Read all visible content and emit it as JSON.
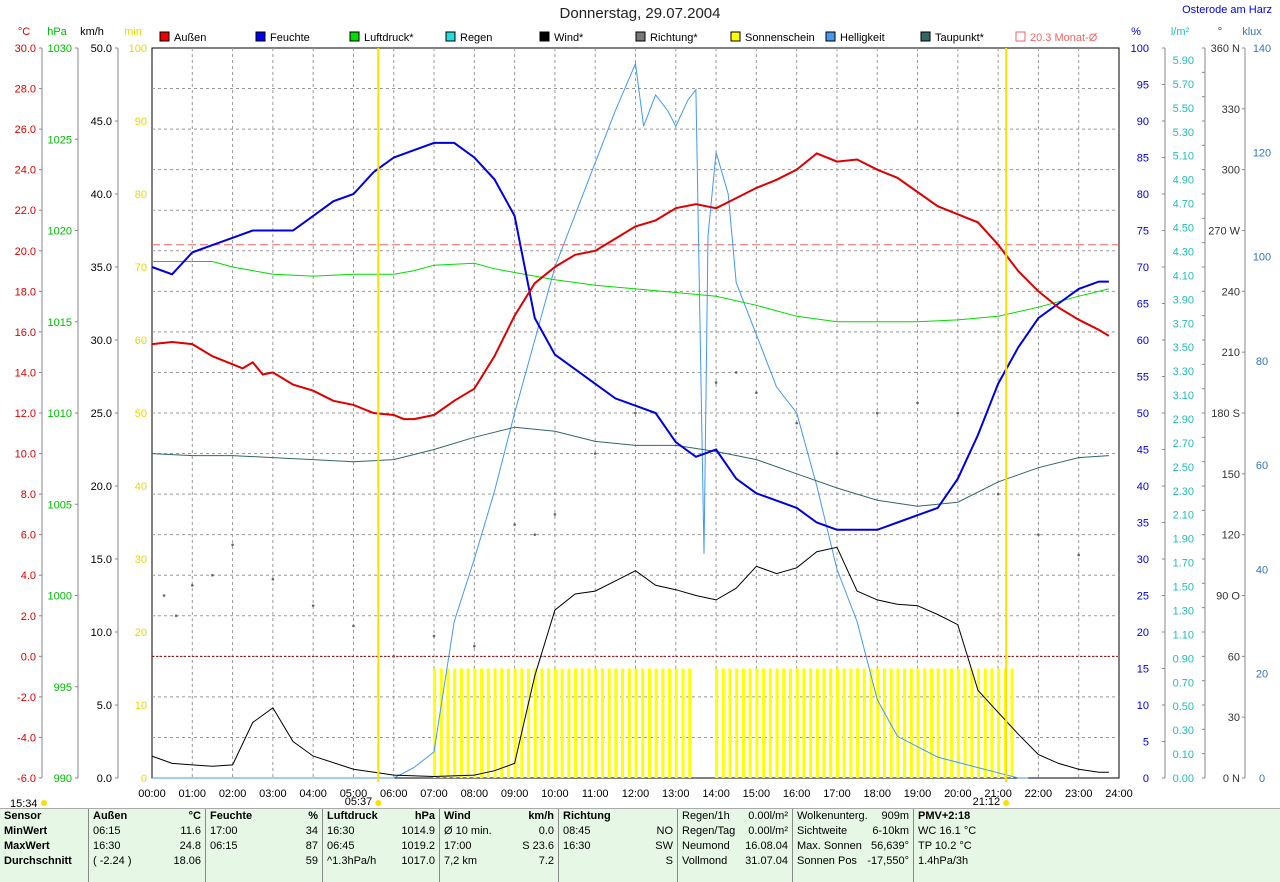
{
  "page": {
    "title": "Donnerstag, 29.07.2004",
    "station": "Osterode am Harz"
  },
  "colors": {
    "temp": "#dd0000",
    "hum": "#0000dd",
    "press": "#00dd00",
    "wind": "#000000",
    "dir": "#666666",
    "sun": "#ffff00",
    "light": "#4499ee",
    "dew": "#336666",
    "avg": "#ee6666",
    "grid": "#999999"
  },
  "legend": [
    {
      "label": "Außen",
      "color": "#ee0000"
    },
    {
      "label": "Feuchte",
      "color": "#0000ee"
    },
    {
      "label": "Luftdruck*",
      "color": "#00dd00"
    },
    {
      "label": "Regen",
      "color": "#22dddd"
    },
    {
      "label": "Wind*",
      "color": "#000000"
    },
    {
      "label": "Richtung*",
      "color": "#777777"
    },
    {
      "label": "Sonnenschein",
      "color": "#ffff00"
    },
    {
      "label": "Helligkeit",
      "color": "#4499ee"
    },
    {
      "label": "Taupunkt*",
      "color": "#336666"
    },
    {
      "label": "20.3 Monat-Ø",
      "color": "#ee6666"
    }
  ],
  "axes": {
    "left_units": [
      "°C",
      "hPa",
      "km/h",
      "min"
    ],
    "right_units": [
      "%",
      "l/m²",
      "°",
      "klux"
    ],
    "temp_ticks": [
      "30.0",
      "28.0",
      "26.0",
      "24.0",
      "22.0",
      "20.0",
      "18.0",
      "16.0",
      "14.0",
      "12.0",
      "10.0",
      "8.0",
      "6.0",
      "4.0",
      "2.0",
      "0.0",
      "-2.0",
      "-4.0",
      "-6.0"
    ],
    "press_ticks": [
      "1030",
      "1025",
      "1020",
      "1015",
      "1010",
      "1005",
      "1000",
      "995",
      "990"
    ],
    "wind_ticks": [
      "50.0",
      "45.0",
      "40.0",
      "35.0",
      "30.0",
      "25.0",
      "20.0",
      "15.0",
      "10.0",
      "5.0",
      "0.0"
    ],
    "min_ticks": [
      "100",
      "90",
      "80",
      "70",
      "60",
      "50",
      "40",
      "30",
      "20",
      "10",
      "0"
    ],
    "hum_ticks": [
      "100",
      "95",
      "90",
      "85",
      "80",
      "75",
      "70",
      "65",
      "60",
      "55",
      "50",
      "45",
      "40",
      "35",
      "30",
      "25",
      "20",
      "15",
      "10",
      "5",
      "0"
    ],
    "rain_ticks": [
      "5.90",
      "5.70",
      "5.50",
      "5.30",
      "5.10",
      "4.90",
      "4.70",
      "4.50",
      "4.30",
      "4.10",
      "3.90",
      "3.70",
      "3.50",
      "3.30",
      "3.10",
      "2.90",
      "2.70",
      "2.50",
      "2.30",
      "2.10",
      "1.90",
      "1.70",
      "1.50",
      "1.30",
      "1.10",
      "0.90",
      "0.70",
      "0.50",
      "0.30",
      "0.10",
      "0.00"
    ],
    "dir_ticks": [
      "360 N",
      "330",
      "300",
      "270 W",
      "240",
      "210",
      "180 S",
      "150",
      "120",
      "90 O",
      "60",
      "30",
      "0 N"
    ],
    "lux_ticks": [
      "140",
      "120",
      "100",
      "80",
      "60",
      "40",
      "20",
      "0"
    ],
    "x_ticks": [
      "00:00",
      "01:00",
      "02:00",
      "03:00",
      "04:00",
      "05:00",
      "06:00",
      "07:00",
      "08:00",
      "09:00",
      "10:00",
      "11:00",
      "12:00",
      "13:00",
      "14:00",
      "15:00",
      "16:00",
      "17:00",
      "18:00",
      "19:00",
      "20:00",
      "21:00",
      "22:00",
      "23:00",
      "24:00"
    ],
    "markers": {
      "sunrise": "05:37",
      "sunset": "21:12",
      "now": "15:34"
    }
  },
  "chart_data": {
    "type": "line",
    "title": "Donnerstag, 29.07.2004",
    "x_range": [
      "00:00",
      "24:00"
    ],
    "series": [
      {
        "name": "Außen",
        "unit": "°C",
        "ylim": [
          -6,
          30
        ],
        "x": [
          0,
          0.5,
          1,
          1.5,
          2,
          2.25,
          2.5,
          2.75,
          3,
          3.5,
          4,
          4.5,
          5,
          5.5,
          6,
          6.25,
          6.5,
          7,
          7.5,
          8,
          8.5,
          9,
          9.5,
          10,
          10.5,
          11,
          11.5,
          12,
          12.5,
          13,
          13.5,
          14,
          14.5,
          15,
          15.5,
          16,
          16.5,
          17,
          17.5,
          18,
          18.5,
          19,
          19.5,
          20,
          20.5,
          21,
          21.5,
          22,
          22.5,
          23,
          23.5,
          23.75
        ],
        "values": [
          15.4,
          15.5,
          15.4,
          14.8,
          14.4,
          14.2,
          14.5,
          13.9,
          14.0,
          13.4,
          13.1,
          12.6,
          12.4,
          12.0,
          11.9,
          11.7,
          11.7,
          11.9,
          12.6,
          13.2,
          14.8,
          16.8,
          18.4,
          19.2,
          19.8,
          20.0,
          20.6,
          21.2,
          21.5,
          22.1,
          22.3,
          22.1,
          22.6,
          23.1,
          23.5,
          24.0,
          24.8,
          24.4,
          24.5,
          24.0,
          23.6,
          22.9,
          22.2,
          21.8,
          21.4,
          20.3,
          19.0,
          18.0,
          17.2,
          16.6,
          16.1,
          15.8
        ]
      },
      {
        "name": "Feuchte",
        "unit": "%",
        "ylim": [
          0,
          100
        ],
        "x": [
          0,
          0.5,
          1,
          1.5,
          2,
          2.5,
          3,
          3.5,
          4,
          4.5,
          5,
          5.5,
          6,
          6.5,
          7,
          7.5,
          8,
          8.5,
          9,
          9.5,
          10,
          10.5,
          11,
          11.5,
          12,
          12.5,
          13,
          13.5,
          14,
          14.5,
          15,
          15.5,
          16,
          16.5,
          17,
          17.5,
          18,
          18.5,
          19,
          19.5,
          20,
          20.5,
          21,
          21.5,
          22,
          22.5,
          23,
          23.5,
          23.75
        ],
        "values": [
          70,
          69,
          72,
          73,
          74,
          75,
          75,
          75,
          77,
          79,
          80,
          83,
          85,
          86,
          87,
          87,
          85,
          82,
          77,
          63,
          58,
          56,
          54,
          52,
          51,
          50,
          46,
          44,
          45,
          41,
          39,
          38,
          37,
          35,
          34,
          34,
          34,
          35,
          36,
          37,
          41,
          47,
          54,
          59,
          63,
          65,
          67,
          68,
          68
        ]
      },
      {
        "name": "Luftdruck*",
        "unit": "hPa",
        "ylim": [
          990,
          1030
        ],
        "x": [
          0,
          1,
          1.5,
          2,
          3,
          4,
          5,
          6,
          6.5,
          7,
          8,
          8.5,
          9,
          10,
          11,
          12,
          13,
          14,
          15,
          16,
          17,
          18,
          19,
          20,
          21,
          22,
          23,
          23.75
        ],
        "values": [
          1018.3,
          1018.3,
          1018.3,
          1018.0,
          1017.6,
          1017.5,
          1017.6,
          1017.6,
          1017.8,
          1018.1,
          1018.2,
          1017.9,
          1017.7,
          1017.3,
          1017.0,
          1016.8,
          1016.6,
          1016.4,
          1015.9,
          1015.3,
          1015.0,
          1015.0,
          1015.0,
          1015.1,
          1015.3,
          1015.8,
          1016.4,
          1016.8
        ]
      },
      {
        "name": "Taupunkt*",
        "unit": "°C",
        "ylim": [
          -6,
          30
        ],
        "x": [
          0,
          1,
          2,
          3,
          4,
          5,
          6,
          7,
          8,
          9,
          10,
          11,
          12,
          13,
          14,
          15,
          16,
          17,
          18,
          19,
          20,
          21,
          22,
          23,
          23.75
        ],
        "values": [
          10.0,
          9.9,
          9.9,
          9.8,
          9.7,
          9.6,
          9.7,
          10.2,
          10.8,
          11.3,
          11.1,
          10.6,
          10.4,
          10.4,
          10.1,
          9.7,
          9.0,
          8.3,
          7.7,
          7.4,
          7.6,
          8.6,
          9.3,
          9.8,
          9.9
        ]
      },
      {
        "name": "Wind*",
        "unit": "km/h",
        "ylim": [
          0,
          50
        ],
        "x": [
          0,
          0.5,
          1,
          1.5,
          2,
          2.5,
          3,
          3.5,
          4,
          5,
          6,
          7,
          8,
          8.5,
          9,
          9.5,
          10,
          10.5,
          11,
          11.5,
          12,
          12.5,
          13,
          13.5,
          14,
          14.5,
          15,
          15.5,
          16,
          16.5,
          17,
          17.5,
          18,
          18.5,
          19,
          19.5,
          20,
          20.5,
          21,
          21.5,
          22,
          22.5,
          23,
          23.5,
          23.75
        ],
        "values": [
          1.5,
          1.0,
          0.9,
          0.8,
          0.9,
          3.8,
          4.8,
          2.5,
          1.5,
          0.6,
          0.2,
          0.1,
          0.2,
          0.5,
          1.0,
          7.0,
          11.5,
          12.6,
          12.8,
          13.5,
          14.2,
          13.2,
          12.9,
          12.5,
          12.2,
          13.0,
          14.5,
          14.0,
          14.4,
          15.5,
          15.8,
          12.8,
          12.2,
          11.9,
          11.8,
          11.2,
          10.5,
          6.0,
          4.5,
          3.0,
          1.6,
          1.0,
          0.6,
          0.4,
          0.4
        ]
      },
      {
        "name": "Helligkeit",
        "unit": "klux",
        "ylim": [
          0,
          140
        ],
        "x": [
          0,
          6,
          6.5,
          7,
          7.5,
          8,
          8.5,
          9,
          9.5,
          10,
          10.5,
          11,
          11.5,
          12,
          12.2,
          12.5,
          12.8,
          13,
          13.3,
          13.5,
          13.7,
          13.8,
          14,
          14.3,
          14.5,
          15,
          15.5,
          16,
          16.5,
          17,
          17.5,
          18,
          18.5,
          19,
          19.5,
          20,
          20.5,
          21,
          21.5,
          21.75
        ],
        "values": [
          0,
          0,
          2,
          5,
          30,
          42,
          55,
          70,
          84,
          98,
          108,
          118,
          128,
          137,
          125,
          131,
          128,
          125,
          130,
          132,
          43,
          104,
          120,
          112,
          95,
          85,
          75,
          70,
          56,
          40,
          30,
          15,
          8,
          6,
          4,
          3,
          2,
          1,
          0,
          0
        ]
      },
      {
        "name": "Sonnenschein",
        "unit": "min",
        "ylim": [
          0,
          100
        ],
        "x": [
          7,
          7.5,
          8,
          8.5,
          9,
          9.5,
          10,
          10.5,
          11,
          11.5,
          12,
          12.5,
          13,
          13.5,
          14,
          14.5,
          15,
          15.5,
          16,
          16.5,
          17,
          17.5,
          18,
          18.5,
          19,
          19.5,
          20,
          20.5,
          21
        ],
        "values": [
          15,
          15,
          15,
          15,
          15,
          15,
          15,
          15,
          15,
          15,
          15,
          15,
          15,
          0,
          15,
          15,
          15,
          15,
          15,
          15,
          15,
          15,
          15,
          15,
          15,
          15,
          15,
          15,
          15
        ]
      },
      {
        "name": "Richtung*",
        "unit": "°",
        "ylim": [
          0,
          360
        ],
        "x": [
          0.3,
          0.6,
          1,
          1.5,
          2,
          3,
          4,
          5,
          6,
          7,
          8,
          9,
          9.5,
          10,
          11,
          12,
          13,
          14,
          14.5,
          15,
          16,
          17,
          18,
          19,
          20,
          21,
          22,
          23
        ],
        "values": [
          90,
          80,
          95,
          100,
          115,
          98,
          85,
          75,
          60,
          70,
          65,
          125,
          120,
          130,
          160,
          180,
          170,
          195,
          200,
          190,
          175,
          160,
          180,
          185,
          180,
          140,
          120,
          110
        ]
      }
    ],
    "reference_lines": [
      {
        "name": "20.3 Monat-Ø",
        "unit": "°C",
        "value": 20.3
      },
      {
        "name": "0 °C",
        "unit": "°C",
        "value": 0.0
      }
    ]
  },
  "table": {
    "header": {
      "sensor": "Sensor",
      "aussen": "Außen",
      "aussen_unit": "°C",
      "feuchte": "Feuchte",
      "feuchte_unit": "%",
      "druck": "Luftdruck",
      "druck_unit": "hPa",
      "wind": "Wind",
      "wind_unit": "km/h",
      "richtung": "Richtung"
    },
    "rows": [
      {
        "label": "MinWert",
        "a_t": "06:15",
        "a_v": "11.6",
        "f_t": "17:00",
        "f_v": "34",
        "d_t": "16:30",
        "d_v": "1014.9",
        "w_t": "Ø 10 min.",
        "w_v": "0.0",
        "r_t": "08:45",
        "r_v": "NO"
      },
      {
        "label": "MaxWert",
        "a_t": "16:30",
        "a_v": "24.8",
        "f_t": "06:15",
        "f_v": "87",
        "d_t": "06:45",
        "d_v": "1019.2",
        "w_t": "17:00",
        "w_v": "S 23.6",
        "r_t": "16:30",
        "r_v": "SW"
      },
      {
        "label": "Durchschnitt",
        "a_t": "( -2.24 )",
        "a_v": "18.06",
        "f_t": "",
        "f_v": "59",
        "d_t": "^1.3hPa/h",
        "d_v": "1017.0",
        "w_t": "7,2 km",
        "w_v": "7.2",
        "r_t": "",
        "r_v": "S"
      }
    ],
    "info1": [
      {
        "k": "Regen/1h",
        "v": "0.00l/m²"
      },
      {
        "k": "Regen/Tag",
        "v": "0.00l/m²"
      },
      {
        "k": "Neumond",
        "v": "16.08.04"
      },
      {
        "k": "Vollmond",
        "v": "31.07.04"
      }
    ],
    "info2": [
      {
        "k": "Wolkenunterg.",
        "v": "909m"
      },
      {
        "k": "Sichtweite",
        "v": "6-10km"
      },
      {
        "k": "Max. Sonnen",
        "v": "56,639°"
      },
      {
        "k": "Sonnen Pos",
        "v": "-17,550°"
      }
    ],
    "info3": [
      "PMV+2:18",
      "WC 16.1 °C",
      "TP 10.2 °C",
      "1.4hPa/3h"
    ]
  }
}
